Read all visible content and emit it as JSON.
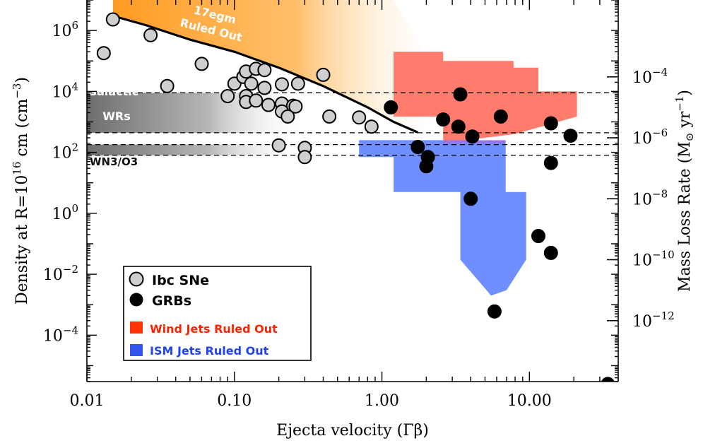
{
  "chart_data": {
    "type": "scatter",
    "xlabel": "Ejecta velocity (Γβ)",
    "ylabel_left": "Density at R=10",
    "ylabel_left_exp": "16",
    "ylabel_left_unit": " cm (cm",
    "ylabel_left_unit_exp": "−3",
    "ylabel_left_close": ")",
    "ylabel_right": "Mass Loss Rate (M",
    "ylabel_right_sun": "⊙",
    "ylabel_right_unit": " yr",
    "ylabel_right_exp": "−1",
    "ylabel_right_close": ")",
    "x_scale": "log",
    "y_scale": "log",
    "xlim": [
      0.01,
      40
    ],
    "ylim": [
      3e-06,
      10000000
    ],
    "x_ticks": [
      {
        "value": 0.01,
        "label": "0.01"
      },
      {
        "value": 0.1,
        "label": "0.10"
      },
      {
        "value": 1,
        "label": "1.00"
      },
      {
        "value": 10,
        "label": "10.00"
      }
    ],
    "y_ticks_left": [
      {
        "value": 1000000,
        "base": "10",
        "exp": "6"
      },
      {
        "value": 10000,
        "base": "10",
        "exp": "4"
      },
      {
        "value": 100,
        "base": "10",
        "exp": "2"
      },
      {
        "value": 1,
        "base": "10",
        "exp": "0"
      },
      {
        "value": 0.01,
        "base": "10",
        "exp": "−2"
      },
      {
        "value": 0.0001,
        "base": "10",
        "exp": "−4"
      }
    ],
    "y_ticks_right": [
      {
        "value": 30000,
        "base": "10",
        "exp": "−4"
      },
      {
        "value": 300,
        "base": "10",
        "exp": "−6"
      },
      {
        "value": 3,
        "base": "10",
        "exp": "−8"
      },
      {
        "value": 0.03,
        "base": "10",
        "exp": "−10"
      },
      {
        "value": 0.0003,
        "base": "10",
        "exp": "−12"
      }
    ],
    "ruled_out_curve": [
      [
        0.015,
        3000000
      ],
      [
        0.025,
        1500000
      ],
      [
        0.05,
        500000
      ],
      [
        0.1,
        200000
      ],
      [
        0.2,
        60000
      ],
      [
        0.4,
        15000
      ],
      [
        0.8,
        3000
      ],
      [
        1.2,
        1000
      ],
      [
        1.75,
        450
      ]
    ],
    "ruled_out_label": [
      "17egm",
      "Ruled Out"
    ],
    "galactic_wr_band": {
      "label": [
        "Galactic",
        "WRs"
      ],
      "y_range": [
        440,
        9000
      ]
    },
    "wn3_band": {
      "label": "WN3/O3",
      "y_range": [
        80,
        180
      ]
    },
    "dashed_lines_y": [
      9000,
      440,
      180,
      80
    ],
    "wind_jets_region": [
      [
        1.2,
        1500
      ],
      [
        1.2,
        40000
      ],
      [
        1.2,
        200000
      ],
      [
        2.6,
        200000
      ],
      [
        2.6,
        100000
      ],
      [
        3.2,
        100000
      ],
      [
        3.2,
        70000
      ],
      [
        3.2,
        100000
      ],
      [
        7.8,
        100000
      ],
      [
        7.8,
        40000
      ],
      [
        7.8,
        60000
      ],
      [
        11.5,
        60000
      ],
      [
        11.5,
        10000
      ],
      [
        21,
        10000
      ],
      [
        21,
        1500
      ],
      [
        8,
        400
      ],
      [
        2.6,
        200
      ],
      [
        2.6,
        1500
      ]
    ],
    "ism_jets_region": [
      [
        0.7,
        220
      ],
      [
        0.7,
        70
      ],
      [
        1.2,
        70
      ],
      [
        1.2,
        5
      ],
      [
        3.4,
        5
      ],
      [
        3.4,
        4
      ],
      [
        3.4,
        0.03
      ],
      [
        5.5,
        0.002
      ],
      [
        7,
        0.003
      ],
      [
        9.5,
        0.03
      ],
      [
        9.5,
        5
      ],
      [
        6.9,
        5
      ],
      [
        6.9,
        200
      ],
      [
        2.6,
        250
      ],
      [
        0.7,
        250
      ]
    ],
    "series": [
      {
        "name": "Ibc SNe",
        "color": "#cfcfcf",
        "points": [
          [
            0.015,
            2300000
          ],
          [
            0.027,
            700000
          ],
          [
            0.013,
            180000
          ],
          [
            0.06,
            80000
          ],
          [
            0.035,
            15000
          ],
          [
            0.1,
            18000
          ],
          [
            0.115,
            30000
          ],
          [
            0.12,
            45000
          ],
          [
            0.14,
            55000
          ],
          [
            0.16,
            50000
          ],
          [
            0.13,
            18000
          ],
          [
            0.16,
            13000
          ],
          [
            0.21,
            17000
          ],
          [
            0.27,
            18000
          ],
          [
            0.4,
            35000
          ],
          [
            0.09,
            7000
          ],
          [
            0.12,
            7000
          ],
          [
            0.12,
            4500
          ],
          [
            0.14,
            5000
          ],
          [
            0.17,
            3600
          ],
          [
            0.21,
            4000
          ],
          [
            0.25,
            3400
          ],
          [
            0.26,
            3200
          ],
          [
            0.21,
            2200
          ],
          [
            0.23,
            1500
          ],
          [
            0.44,
            1500
          ],
          [
            0.7,
            1400
          ],
          [
            0.85,
            700
          ],
          [
            0.2,
            170
          ],
          [
            0.3,
            140
          ],
          [
            0.3,
            70
          ]
        ]
      },
      {
        "name": "GRBs",
        "color": "#000000",
        "points": [
          [
            1.15,
            3000
          ],
          [
            3.4,
            8000
          ],
          [
            2.6,
            1200
          ],
          [
            3.3,
            700
          ],
          [
            6.4,
            1500
          ],
          [
            14,
            900
          ],
          [
            19,
            350
          ],
          [
            4.1,
            330
          ],
          [
            1.75,
            150
          ],
          [
            2.05,
            70
          ],
          [
            2,
            35
          ],
          [
            14,
            45
          ],
          [
            4,
            3
          ],
          [
            11.5,
            0.18
          ],
          [
            14,
            0.05
          ],
          [
            5.8,
            0.0006
          ],
          [
            34,
            2.5e-06
          ]
        ]
      }
    ],
    "legend": {
      "placement": "bottom-left",
      "items": [
        {
          "label": "Ibc SNe",
          "marker": "circle",
          "color": "#cfcfcf"
        },
        {
          "label": "GRBs",
          "marker": "circle",
          "color": "#000000"
        },
        {
          "label": "Wind Jets Ruled Out",
          "marker": "square",
          "color": "#ff3300"
        },
        {
          "label": "ISM Jets Ruled Out",
          "marker": "square",
          "color": "#3355ee"
        }
      ]
    },
    "colors": {
      "wind_region": "#ff7b6b",
      "ism_region": "#6f8eff",
      "overlap": "#9a74e4",
      "ruled_out": "#ffa030",
      "band_dark": "#7a7a7a",
      "legend_wind_text": "#ff2200",
      "legend_ism_text": "#2244ee"
    }
  }
}
